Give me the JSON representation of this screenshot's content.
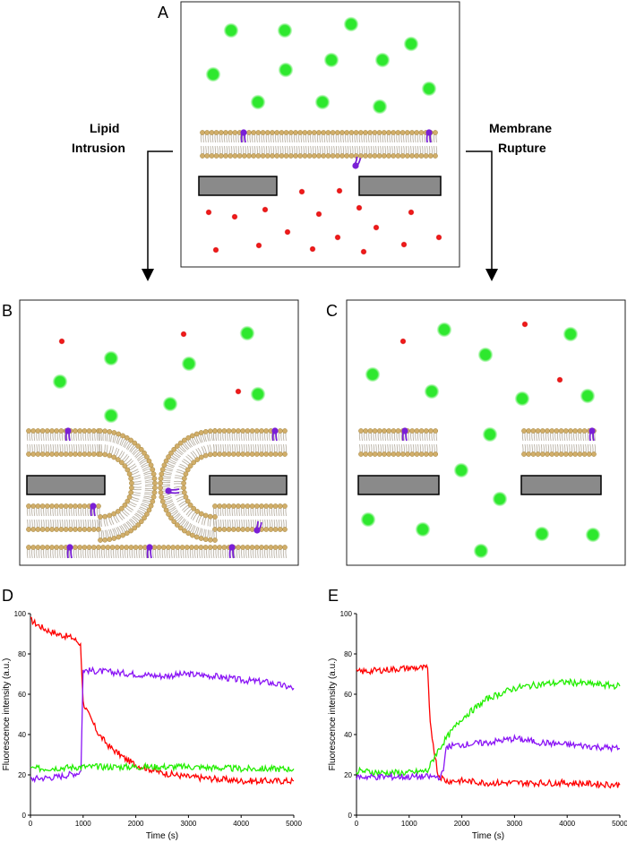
{
  "panels": {
    "a": {
      "letter": "A"
    },
    "b": {
      "letter": "B"
    },
    "c": {
      "letter": "C"
    },
    "d": {
      "letter": "D"
    },
    "e": {
      "letter": "E"
    }
  },
  "arrows": {
    "left_label_line1": "Lipid",
    "left_label_line2": "Intrusion",
    "right_label_line1": "Membrane",
    "right_label_line2": "Rupture"
  },
  "colors": {
    "green_dye": "#2ee82e",
    "red_dye": "#e01010",
    "lipid_head": "#d1ae6a",
    "labeled_lipid": "#7a1fd6",
    "support": "#8a8a8a",
    "trace_red": "#ff0000",
    "trace_green": "#22ee00",
    "trace_purple": "#8a14f5"
  },
  "chart_data": [
    {
      "type": "line",
      "panel": "D",
      "xlabel": "Time (s)",
      "ylabel": "Fluorescence intensity (a.u.)",
      "xlim": [
        0,
        5000
      ],
      "ylim": [
        0,
        100
      ],
      "xticks": [
        0,
        1000,
        2000,
        3000,
        4000,
        5000
      ],
      "yticks": [
        0,
        20,
        40,
        60,
        80,
        100
      ],
      "series": [
        {
          "color": "red",
          "x": [
            0,
            100,
            300,
            500,
            800,
            950,
            1000,
            1100,
            1300,
            1500,
            1800,
            2000,
            2500,
            3000,
            3500,
            4000,
            4500,
            5000
          ],
          "y": [
            97,
            95,
            92,
            90,
            88,
            85,
            56,
            50,
            40,
            34,
            28,
            25,
            21,
            19,
            18,
            17,
            17,
            17
          ]
        },
        {
          "color": "purple",
          "x": [
            0,
            500,
            900,
            960,
            1000,
            1500,
            2000,
            2500,
            3000,
            3500,
            4000,
            4500,
            5000
          ],
          "y": [
            18,
            19,
            21,
            22,
            72,
            71,
            70,
            69,
            70,
            69,
            67,
            66,
            63
          ]
        },
        {
          "color": "green",
          "x": [
            0,
            1000,
            2000,
            3000,
            4000,
            5000
          ],
          "y": [
            23,
            24,
            24,
            24,
            23,
            23
          ]
        }
      ]
    },
    {
      "type": "line",
      "panel": "E",
      "xlabel": "Time (s)",
      "ylabel": "Fluorescence intensity (a.u.)",
      "xlim": [
        0,
        5000
      ],
      "ylim": [
        0,
        100
      ],
      "xticks": [
        0,
        1000,
        2000,
        3000,
        4000,
        5000
      ],
      "yticks": [
        0,
        20,
        40,
        60,
        80,
        100
      ],
      "series": [
        {
          "color": "red",
          "x": [
            0,
            500,
            1000,
            1350,
            1400,
            1550,
            1700,
            2000,
            2500,
            3000,
            4000,
            5000
          ],
          "y": [
            71,
            72,
            73,
            73,
            45,
            20,
            17,
            17,
            16,
            16,
            16,
            15
          ]
        },
        {
          "color": "green",
          "x": [
            0,
            500,
            1000,
            1350,
            1500,
            1700,
            2000,
            2500,
            3000,
            3500,
            4000,
            4500,
            5000
          ],
          "y": [
            22,
            21,
            21,
            22,
            30,
            38,
            48,
            58,
            63,
            65,
            66,
            65,
            64
          ]
        },
        {
          "color": "purple",
          "x": [
            0,
            500,
            1000,
            1600,
            1650,
            1700,
            2000,
            2500,
            3000,
            3500,
            4000,
            4500,
            5000
          ],
          "y": [
            19,
            19,
            19,
            19,
            22,
            34,
            35,
            36,
            38,
            36,
            35,
            34,
            33
          ]
        }
      ]
    }
  ]
}
